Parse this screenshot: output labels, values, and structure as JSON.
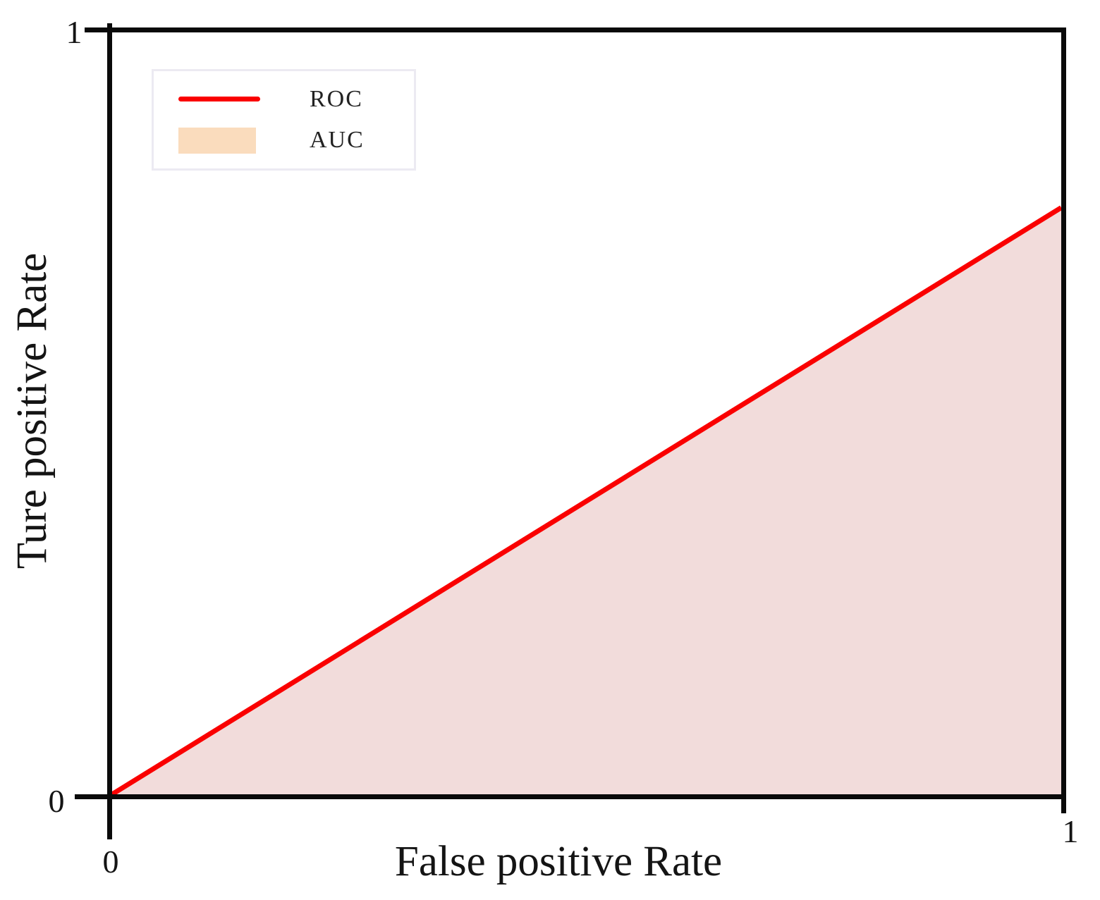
{
  "axes": {
    "x_label": "False positive Rate",
    "y_label": "Ture positive Rate",
    "x_tick_min": "0",
    "x_tick_max": "1",
    "y_tick_min": "0",
    "y_tick_max": "1"
  },
  "legend": {
    "items": [
      {
        "label": "ROC",
        "swatch": "line",
        "color": "#fa0000"
      },
      {
        "label": "AUC",
        "swatch": "rect",
        "color": "#fadcbd"
      }
    ]
  },
  "colors": {
    "axis_frame": "#0a0a0a",
    "roc_line": "#fa0000",
    "auc_area_fill": "#f2dcdb",
    "legend_auc_swatch": "#fadcbd",
    "legend_border": "#eceaf2",
    "text": "#141414",
    "background": "#ffffff"
  },
  "chart_data": {
    "type": "line",
    "title": "",
    "xlabel": "False positive Rate",
    "ylabel": "Ture positive Rate",
    "xlim": [
      0,
      1
    ],
    "ylim": [
      0,
      1
    ],
    "x_ticks": [
      0,
      1
    ],
    "y_ticks": [
      0,
      1
    ],
    "grid": false,
    "legend_position": "upper-left",
    "series": [
      {
        "name": "ROC",
        "type": "line",
        "color": "#fa0000",
        "points": [
          [
            0,
            0
          ],
          [
            1,
            0.77
          ]
        ]
      },
      {
        "name": "AUC",
        "type": "area",
        "color": "#f2dcdb",
        "description": "shaded region between ROC line and x-axis",
        "points": [
          [
            0,
            0
          ],
          [
            1,
            0.77
          ],
          [
            1,
            0
          ]
        ]
      }
    ]
  }
}
